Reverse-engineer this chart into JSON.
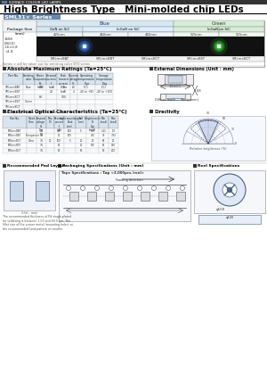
{
  "title": "High Brightness Type   Mini-molded chip LEDs",
  "subtitle": "SML31× Series",
  "header_label": "SURFACE COLOUR LED LAMPS",
  "bg_color": "#ffffff",
  "black_strip_color": "#111111",
  "blue_color": "#3366cc",
  "green_color": "#33aa33",
  "subtitle_bg": "#6688aa",
  "subtitle_text": "#ffffff",
  "col_blue_header": "Blue",
  "col_green_header": "Green",
  "pkg_size_val": "1608\n(0603)\n1.6×0.8\n×1.8",
  "blue_subcols": [
    "GaN on SiC",
    "InGaN on SiC"
  ],
  "blue_wavelengths": [
    "425nm",
    "460nm"
  ],
  "green_subcols": [
    "InGaN on SiC"
  ],
  "green_wavelengths": [
    "525nm"
  ],
  "part_numbers": [
    "SMLm×BAT",
    "SMLm×BBT",
    "SMLm×BCT",
    "SMLm×BST",
    "SMLm×BCT"
  ],
  "abs_max_title": "Absolute Maximum Ratings (Ta=25°C)",
  "ext_dim_title": "External Dimensions (Unit : mm)",
  "elec_opt_title": "Electrical Optical Characteristics (Ta=25°C)",
  "directivity_title": "Directivity",
  "pad_layout_title": "Recommended Pad Layout",
  "pkg_spec_title": "Packaging Specifications (Unit : mm)",
  "tape_spec": "Tape Specifications : Tøφ <3,000pcs./reel>",
  "reel_spec": "Reel Specifications",
  "note_abs": "min : measured under duty 1/10 No frame",
  "note_part": "Series × will be taken out for emitting color STO series",
  "note_pad": "The recommended thickness of Pd single-plated\nfor soldering is between 1.00 and 40.0 μm. The\nfillet size of the screen metal (mounting holes) at\nthe recommended land-pattern or smaller."
}
